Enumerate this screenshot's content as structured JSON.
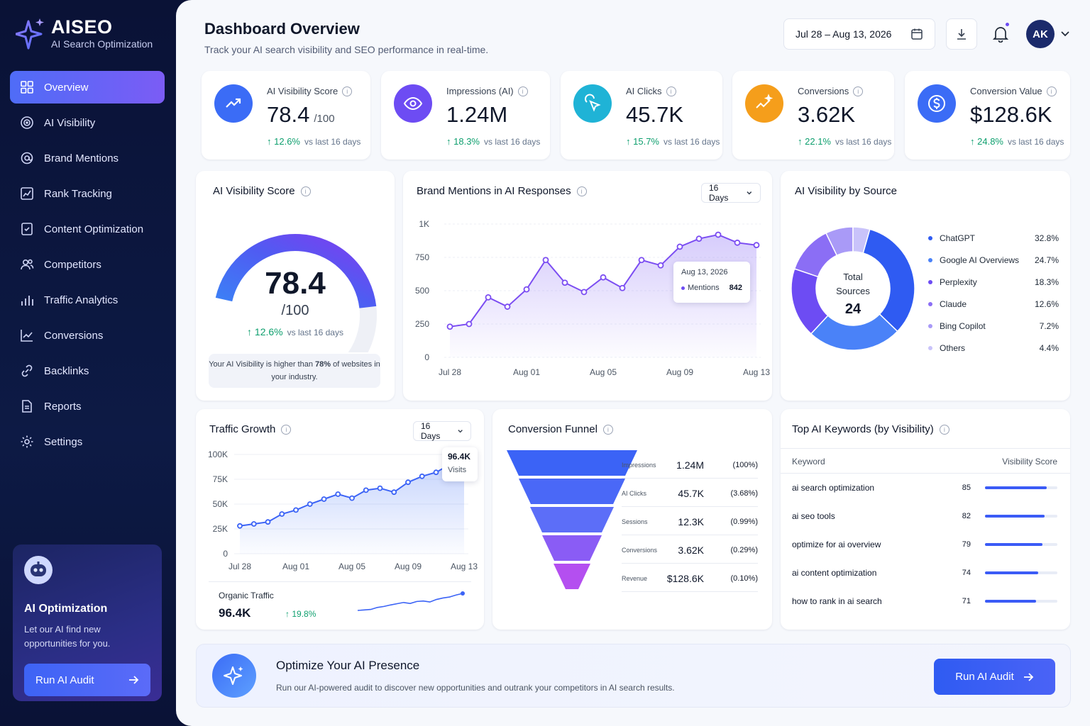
{
  "brand": {
    "name": "AISEO",
    "subtitle": "AI Search Optimization"
  },
  "nav": [
    {
      "label": "Overview",
      "icon": "grid-icon",
      "active": true
    },
    {
      "label": "AI Visibility",
      "icon": "target-icon"
    },
    {
      "label": "Brand Mentions",
      "icon": "mentions-icon"
    },
    {
      "label": "Rank Tracking",
      "icon": "chart-line-icon"
    },
    {
      "label": "Content Optimization",
      "icon": "document-check-icon"
    },
    {
      "label": "Competitors",
      "icon": "users-icon"
    },
    {
      "label": "Traffic Analytics",
      "icon": "bar-chart-icon"
    },
    {
      "label": "Conversions",
      "icon": "trend-icon"
    },
    {
      "label": "Backlinks",
      "icon": "link-icon"
    },
    {
      "label": "Reports",
      "icon": "file-icon"
    },
    {
      "label": "Settings",
      "icon": "gear-icon"
    }
  ],
  "promo": {
    "title": "AI Optimization",
    "text": "Let our AI find new opportunities for you.",
    "button": "Run AI Audit"
  },
  "header": {
    "title": "Dashboard Overview",
    "subtitle": "Track your AI search visibility and SEO performance in real-time.",
    "date_range": "Jul 28 – Aug 13, 2026",
    "avatar": "AK"
  },
  "kpis": [
    {
      "label": "AI Visibility Score",
      "value": "78.4",
      "suffix": "/100",
      "change": "12.6%",
      "note": "vs last 16 days",
      "color": "#3b6cf6",
      "icon": "trend-up-icon"
    },
    {
      "label": "Impressions (AI)",
      "value": "1.24M",
      "suffix": "",
      "change": "18.3%",
      "note": "vs last 16 days",
      "color": "#6d4cf3",
      "icon": "eye-icon"
    },
    {
      "label": "AI Clicks",
      "value": "45.7K",
      "suffix": "",
      "change": "15.7%",
      "note": "vs last 16 days",
      "color": "#1fb3d6",
      "icon": "cursor-click-icon"
    },
    {
      "label": "Conversions",
      "value": "3.62K",
      "suffix": "",
      "change": "22.1%",
      "note": "vs last 16 days",
      "color": "#f59e1b",
      "icon": "sparkle-trend-icon"
    },
    {
      "label": "Conversion Value",
      "value": "$128.6K",
      "suffix": "",
      "change": "24.8%",
      "note": "vs last 16 days",
      "color": "#3b6cf6",
      "icon": "dollar-icon"
    }
  ],
  "score_card": {
    "title": "AI Visibility Score",
    "value": "78.4",
    "max": "/100",
    "progress": 0.784,
    "change": "12.6%",
    "note": "vs last 16 days",
    "footer_pre": "Your AI Visibility is higher than",
    "footer_bold": "78%",
    "footer_post": "of websites in your industry."
  },
  "mentions_card": {
    "title": "Brand Mentions in AI Responses",
    "range": "16 Days",
    "tooltip_date": "Aug 13, 2026",
    "tooltip_label": "Mentions",
    "tooltip_value": "842"
  },
  "source_card": {
    "title": "AI Visibility by Source",
    "center_label": "Total Sources",
    "center_value": "24"
  },
  "traffic_card": {
    "title": "Traffic Growth",
    "range": "16 Days",
    "tooltip_value": "96.4K",
    "tooltip_label": "Visits",
    "organic_label": "Organic Traffic",
    "organic_value": "96.4K",
    "organic_change": "19.8%"
  },
  "funnel_card": {
    "title": "Conversion Funnel",
    "stages": [
      {
        "label": "Impressions",
        "value": "1.24M",
        "pct": "(100%)",
        "color": "#3b63f6"
      },
      {
        "label": "AI Clicks",
        "value": "45.7K",
        "pct": "(3.68%)",
        "color": "#4a68f7"
      },
      {
        "label": "Sessions",
        "value": "12.3K",
        "pct": "(0.99%)",
        "color": "#5c6ef8"
      },
      {
        "label": "Conversions",
        "value": "3.62K",
        "pct": "(0.29%)",
        "color": "#8a5cf5"
      },
      {
        "label": "Revenue",
        "value": "$128.6K",
        "pct": "(0.10%)",
        "color": "#b44ff0"
      }
    ]
  },
  "keywords_card": {
    "title": "Top AI Keywords (by Visibility)",
    "col_keyword": "Keyword",
    "col_score": "Visibility Score",
    "rows": [
      {
        "keyword": "ai search optimization",
        "score": 85
      },
      {
        "keyword": "ai seo tools",
        "score": 82
      },
      {
        "keyword": "optimize for ai overview",
        "score": 79
      },
      {
        "keyword": "ai content optimization",
        "score": 74
      },
      {
        "keyword": "how to rank in ai search",
        "score": 71
      }
    ]
  },
  "banner": {
    "title": "Optimize Your AI Presence",
    "text": "Run our AI-powered audit to discover new opportunities and outrank your competitors in AI search results.",
    "button": "Run AI Audit"
  },
  "chart_data": [
    {
      "type": "line",
      "title": "Brand Mentions in AI Responses",
      "x": [
        "Jul 28",
        "Jul 29",
        "Jul 30",
        "Jul 31",
        "Aug 01",
        "Aug 02",
        "Aug 03",
        "Aug 04",
        "Aug 05",
        "Aug 06",
        "Aug 07",
        "Aug 08",
        "Aug 09",
        "Aug 10",
        "Aug 11",
        "Aug 12",
        "Aug 13"
      ],
      "x_ticks": [
        "Jul 28",
        "Aug 01",
        "Aug 05",
        "Aug 09",
        "Aug 13"
      ],
      "series": [
        {
          "name": "Mentions",
          "values": [
            230,
            250,
            450,
            380,
            510,
            730,
            560,
            490,
            600,
            520,
            730,
            690,
            830,
            890,
            920,
            860,
            842
          ]
        }
      ],
      "y_ticks": [
        "0",
        "250",
        "500",
        "750",
        "1K"
      ],
      "ylim": [
        0,
        1000
      ],
      "grid": true
    },
    {
      "type": "pie",
      "title": "AI Visibility by Source",
      "series": [
        {
          "values": [
            32.8,
            24.7,
            18.3,
            12.6,
            7.2,
            4.4
          ]
        }
      ],
      "categories": [
        "ChatGPT",
        "Google AI Overviews",
        "Perplexity",
        "Claude",
        "Bing Copilot",
        "Others"
      ],
      "labels": [
        "32.8%",
        "24.7%",
        "18.3%",
        "12.6%",
        "7.2%",
        "4.4%"
      ],
      "colors": [
        "#2f5bf2",
        "#4a82f8",
        "#6d4cf3",
        "#8b6ef5",
        "#a99af7",
        "#c9c3fa"
      ]
    },
    {
      "type": "area",
      "title": "Traffic Growth",
      "x": [
        "Jul 28",
        "Jul 29",
        "Jul 30",
        "Jul 31",
        "Aug 01",
        "Aug 02",
        "Aug 03",
        "Aug 04",
        "Aug 05",
        "Aug 06",
        "Aug 07",
        "Aug 08",
        "Aug 09",
        "Aug 10",
        "Aug 11",
        "Aug 12",
        "Aug 13"
      ],
      "x_ticks": [
        "Jul 28",
        "Aug 01",
        "Aug 05",
        "Aug 09",
        "Aug 13"
      ],
      "series": [
        {
          "name": "Visits",
          "values": [
            28,
            30,
            32,
            40,
            44,
            50,
            55,
            60,
            56,
            64,
            66,
            62,
            72,
            78,
            82,
            90,
            96.4
          ]
        }
      ],
      "y_ticks": [
        "0",
        "25K",
        "50K",
        "75K",
        "100K"
      ],
      "ylim": [
        0,
        100
      ],
      "grid": true
    }
  ]
}
